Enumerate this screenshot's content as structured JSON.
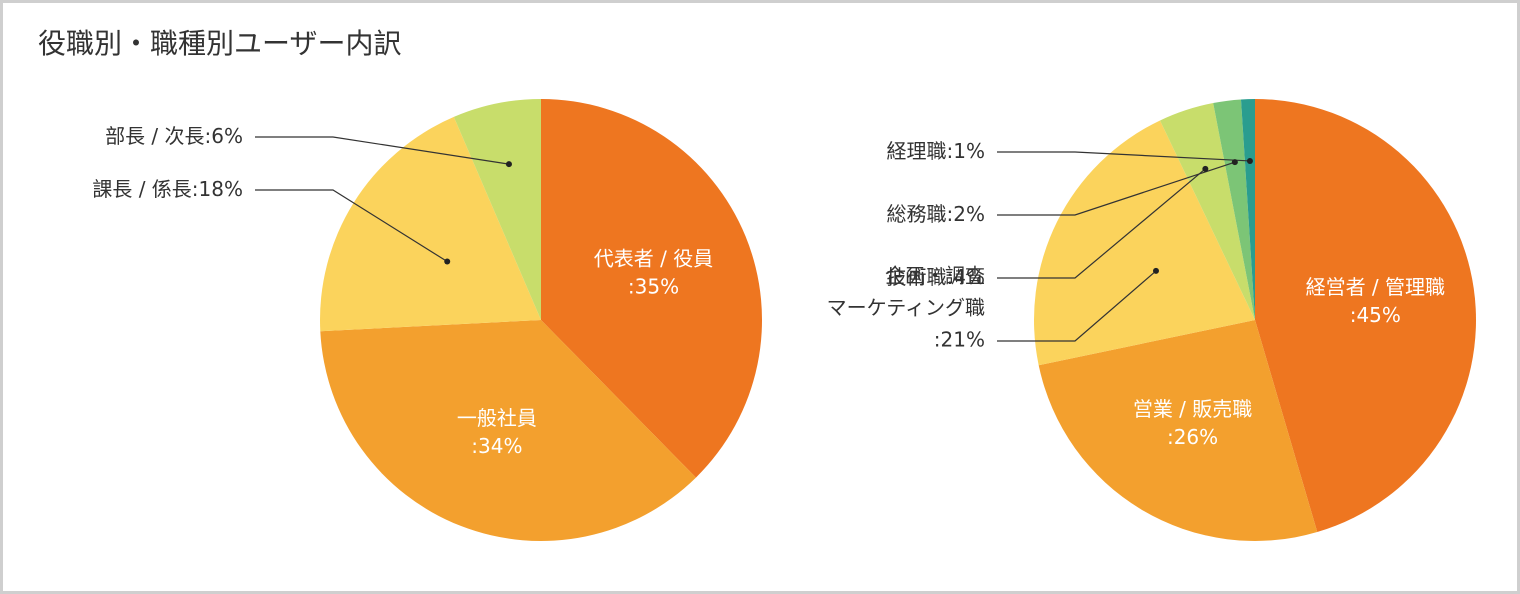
{
  "title": "役職別・職種別ユーザー内訳",
  "chart_data": [
    {
      "type": "pie",
      "categories": [
        [
          "代表者 / 役員"
        ],
        [
          "一般社員"
        ],
        [
          "課長 / 係長"
        ],
        [
          "部長 / 次長"
        ]
      ],
      "values": [
        35,
        34,
        18,
        6
      ],
      "value_labels": [
        ":35%",
        ":34%",
        ":18%",
        ":6%"
      ],
      "colors": [
        "#ee7620",
        "#f3a02e",
        "#fbd35c",
        "#c8dd6b"
      ]
    },
    {
      "type": "pie",
      "categories": [
        [
          "経営者 / 管理職"
        ],
        [
          "営業 / 販売職"
        ],
        [
          "企画・調査",
          "マーケティング職"
        ],
        [
          "技術職"
        ],
        [
          "総務職"
        ],
        [
          "経理職"
        ]
      ],
      "values": [
        45,
        26,
        21,
        4,
        2,
        1
      ],
      "value_labels": [
        ":45%",
        ":26%",
        ":21%",
        ":4%",
        ":2%",
        ":1%"
      ],
      "colors": [
        "#ee7620",
        "#f3a02e",
        "#fbd35c",
        "#c8dd6b",
        "#7cc576",
        "#2a9d8f"
      ]
    }
  ]
}
